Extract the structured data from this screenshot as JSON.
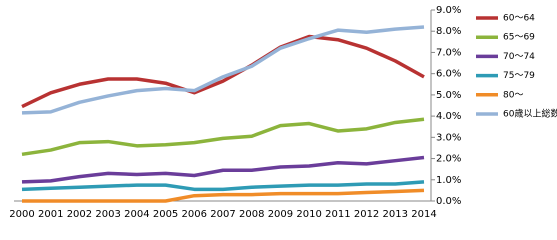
{
  "chart_data": {
    "type": "line",
    "x": [
      "2000",
      "2001",
      "2002",
      "2003",
      "2004",
      "2005",
      "2006",
      "2007",
      "2008",
      "2009",
      "2010",
      "2011",
      "2012",
      "2013",
      "2014"
    ],
    "series": [
      {
        "name": "60～64",
        "color": "#b83232",
        "values": [
          4.45,
          5.1,
          5.5,
          5.75,
          5.75,
          5.55,
          5.1,
          5.65,
          6.4,
          7.25,
          7.75,
          7.6,
          7.2,
          6.6,
          5.85
        ]
      },
      {
        "name": "65～69",
        "color": "#8cb43c",
        "values": [
          2.2,
          2.4,
          2.75,
          2.8,
          2.6,
          2.65,
          2.75,
          2.95,
          3.05,
          3.55,
          3.65,
          3.3,
          3.4,
          3.7,
          3.85
        ]
      },
      {
        "name": "70～74",
        "color": "#6a3d9a",
        "values": [
          0.9,
          0.95,
          1.15,
          1.3,
          1.25,
          1.3,
          1.2,
          1.45,
          1.45,
          1.6,
          1.65,
          1.8,
          1.75,
          1.9,
          2.05
        ]
      },
      {
        "name": "75～79",
        "color": "#2e9bb5",
        "values": [
          0.55,
          0.6,
          0.65,
          0.7,
          0.75,
          0.75,
          0.55,
          0.55,
          0.65,
          0.7,
          0.75,
          0.75,
          0.8,
          0.8,
          0.9
        ]
      },
      {
        "name": "80～",
        "color": "#f08c28",
        "values": [
          0,
          0,
          0,
          0,
          0,
          0,
          0.25,
          0.3,
          0.3,
          0.35,
          0.35,
          0.35,
          0.4,
          0.45,
          0.5
        ]
      },
      {
        "name": "60歳以上総数",
        "color": "#95b3d7",
        "values": [
          4.15,
          4.2,
          4.65,
          4.95,
          5.2,
          5.3,
          5.2,
          5.85,
          6.35,
          7.2,
          7.65,
          8.05,
          7.95,
          8.1,
          8.2
        ]
      }
    ],
    "ylim": [
      0,
      9
    ],
    "yticks": [
      {
        "value": 0,
        "label": "0.0%"
      },
      {
        "value": 1,
        "label": "1.0%"
      },
      {
        "value": 2,
        "label": "2.0%"
      },
      {
        "value": 3,
        "label": "3.0%"
      },
      {
        "value": 4,
        "label": "4.0%"
      },
      {
        "value": 5,
        "label": "5.0%"
      },
      {
        "value": 6,
        "label": "6.0%"
      },
      {
        "value": 7,
        "label": "7.0%"
      },
      {
        "value": 8,
        "label": "8.0%"
      },
      {
        "value": 9,
        "label": "9.0%"
      }
    ],
    "y_axis_side": "right",
    "grid": false,
    "legend": "upper right"
  }
}
